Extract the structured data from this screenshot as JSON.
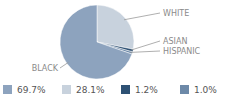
{
  "chart_data": {
    "type": "pie",
    "categories": [
      "BLACK",
      "WHITE",
      "ASIAN",
      "HISPANIC"
    ],
    "values": [
      69.7,
      28.1,
      1.2,
      1.0
    ],
    "value_labels": [
      "69.7%",
      "28.1%",
      "1.2%",
      "1.0%"
    ],
    "colors": [
      "#8da3be",
      "#c8d2dd",
      "#2e5174",
      "#6d89a8"
    ],
    "legend": "bottom"
  }
}
